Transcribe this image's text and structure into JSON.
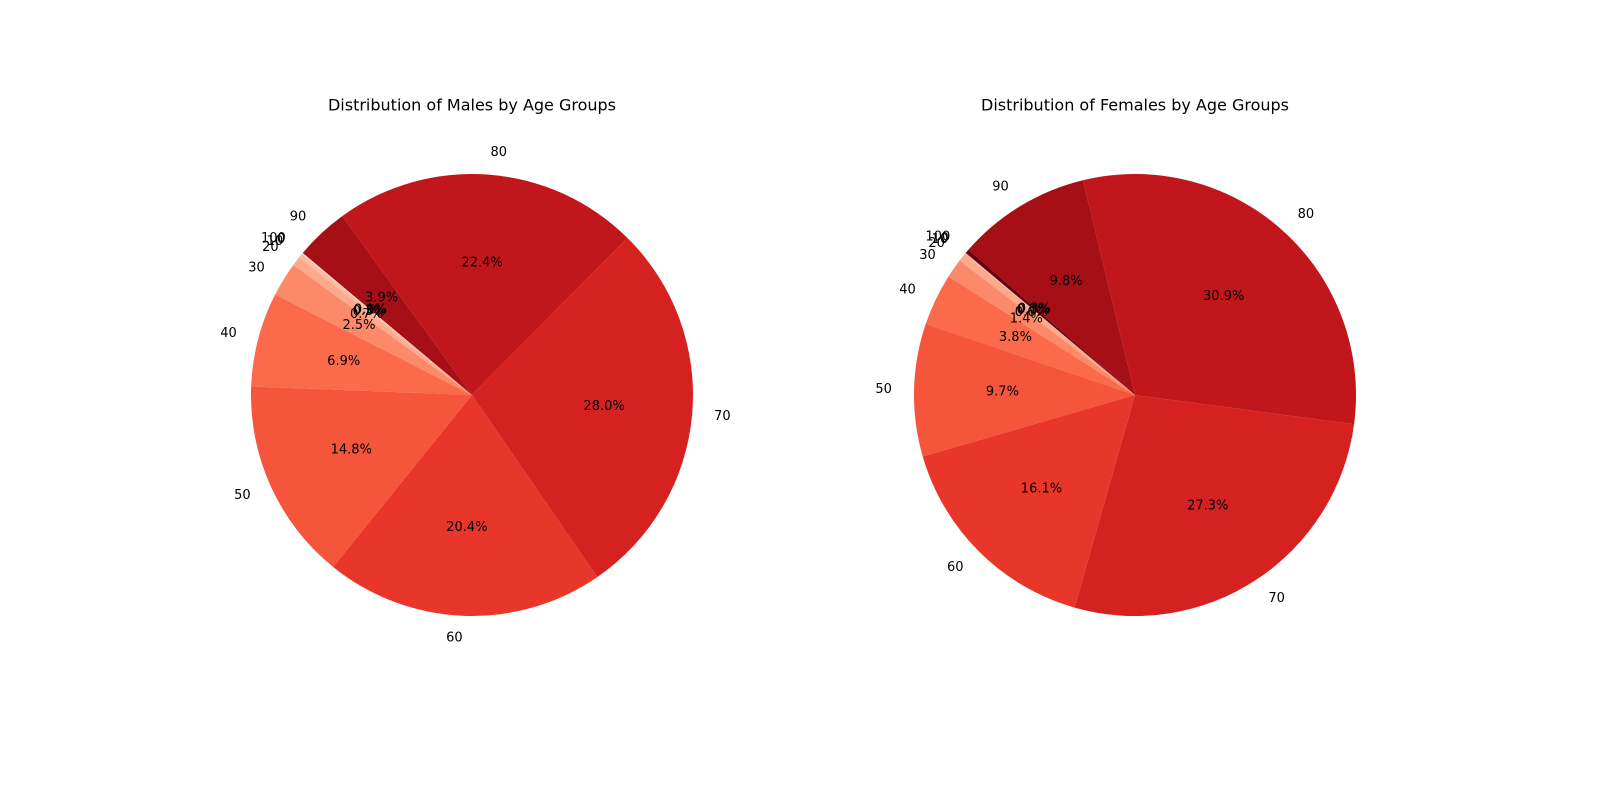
{
  "chart_data": [
    {
      "type": "pie",
      "title": "Distribution of Males by Age Groups",
      "categories": [
        "0",
        "10",
        "20",
        "30",
        "40",
        "50",
        "60",
        "70",
        "80",
        "90",
        "100"
      ],
      "values": [
        0.1,
        0.3,
        0.7,
        2.5,
        6.9,
        14.8,
        20.4,
        28.0,
        22.4,
        3.9,
        0.0
      ],
      "value_labels": [
        "0.1%",
        "0.3%",
        "0.7%",
        "2.5%",
        "6.9%",
        "14.8%",
        "20.4%",
        "28.0%",
        "22.4%",
        "3.9%",
        "0.0%"
      ],
      "colors": [
        "#fee0d2",
        "#fcbba1",
        "#fca98c",
        "#fc8a6a",
        "#fb6a4a",
        "#f4553b",
        "#e9362a",
        "#d52221",
        "#c0161c",
        "#a50f15",
        "#67000d"
      ]
    },
    {
      "type": "pie",
      "title": "Distribution of Females by Age Groups",
      "categories": [
        "0",
        "10",
        "20",
        "30",
        "40",
        "50",
        "60",
        "70",
        "80",
        "90",
        "100"
      ],
      "values": [
        0.0,
        0.1,
        0.6,
        1.4,
        3.8,
        9.7,
        16.1,
        27.3,
        30.9,
        9.8,
        0.3
      ],
      "value_labels": [
        "0.0%",
        "0.1%",
        "0.6%",
        "1.4%",
        "3.8%",
        "9.7%",
        "16.1%",
        "27.3%",
        "30.9%",
        "9.8%",
        "0.3%"
      ],
      "colors": [
        "#fee0d2",
        "#fcbba1",
        "#fca98c",
        "#fc8a6a",
        "#fb6a4a",
        "#f4553b",
        "#e9362a",
        "#d52221",
        "#c0161c",
        "#a50f15",
        "#67000d"
      ]
    }
  ]
}
